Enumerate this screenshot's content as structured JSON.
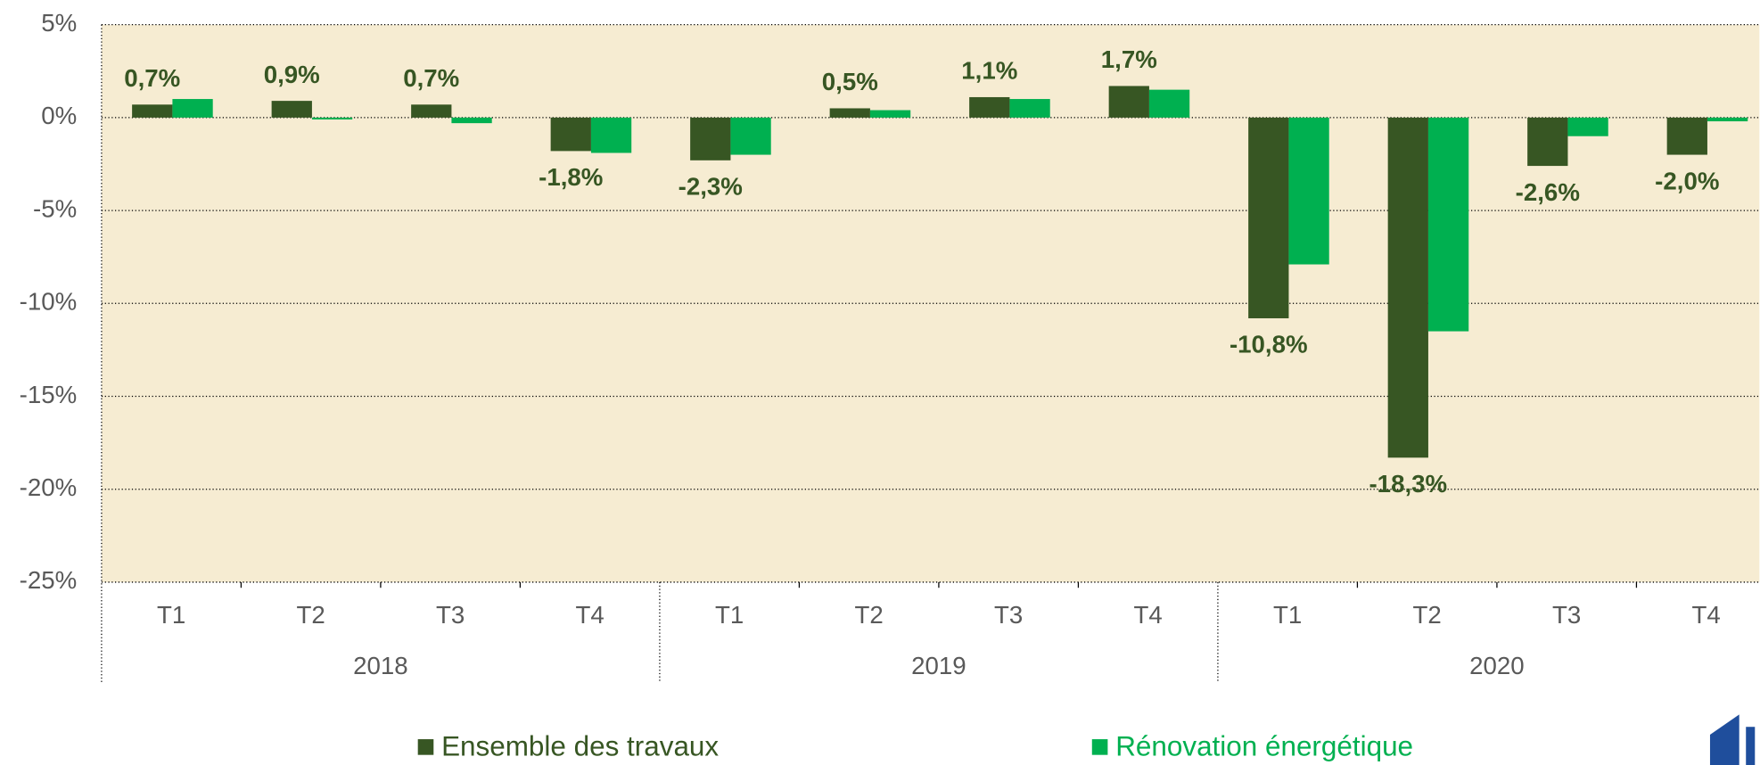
{
  "chart_data": {
    "type": "bar",
    "categories": [
      "T1",
      "T2",
      "T3",
      "T4",
      "T1",
      "T2",
      "T3",
      "T4",
      "T1",
      "T2",
      "T3",
      "T4"
    ],
    "category_groups": [
      "2018",
      "2019",
      "2020"
    ],
    "series": [
      {
        "name": "Ensemble des travaux",
        "color": "#375623",
        "values": [
          0.7,
          0.9,
          0.7,
          -1.8,
          -2.3,
          0.5,
          1.1,
          1.7,
          -10.8,
          -18.3,
          -2.6,
          -2.0
        ],
        "value_labels": [
          "0,7%",
          "0,9%",
          "0,7%",
          "-1,8%",
          "-2,3%",
          "0,5%",
          "1,1%",
          "1,7%",
          "-10,8%",
          "-18,3%",
          "-2,6%",
          "-2,0%"
        ]
      },
      {
        "name": "Rénovation énergétique",
        "color": "#00b050",
        "values": [
          1.0,
          -0.1,
          -0.3,
          -1.9,
          -2.0,
          0.4,
          1.0,
          1.5,
          -7.9,
          -11.5,
          -1.0,
          -0.2
        ]
      }
    ],
    "ylim": [
      -25,
      5
    ],
    "yticks": [
      {
        "value": -25,
        "label": "-25%"
      },
      {
        "value": -20,
        "label": "-20%"
      },
      {
        "value": -15,
        "label": "-15%"
      },
      {
        "value": -10,
        "label": "-10%"
      },
      {
        "value": -5,
        "label": "-5%"
      },
      {
        "value": 0,
        "label": "0%"
      },
      {
        "value": 5,
        "label": "5%"
      }
    ],
    "grid": true,
    "legend": "bottom"
  }
}
